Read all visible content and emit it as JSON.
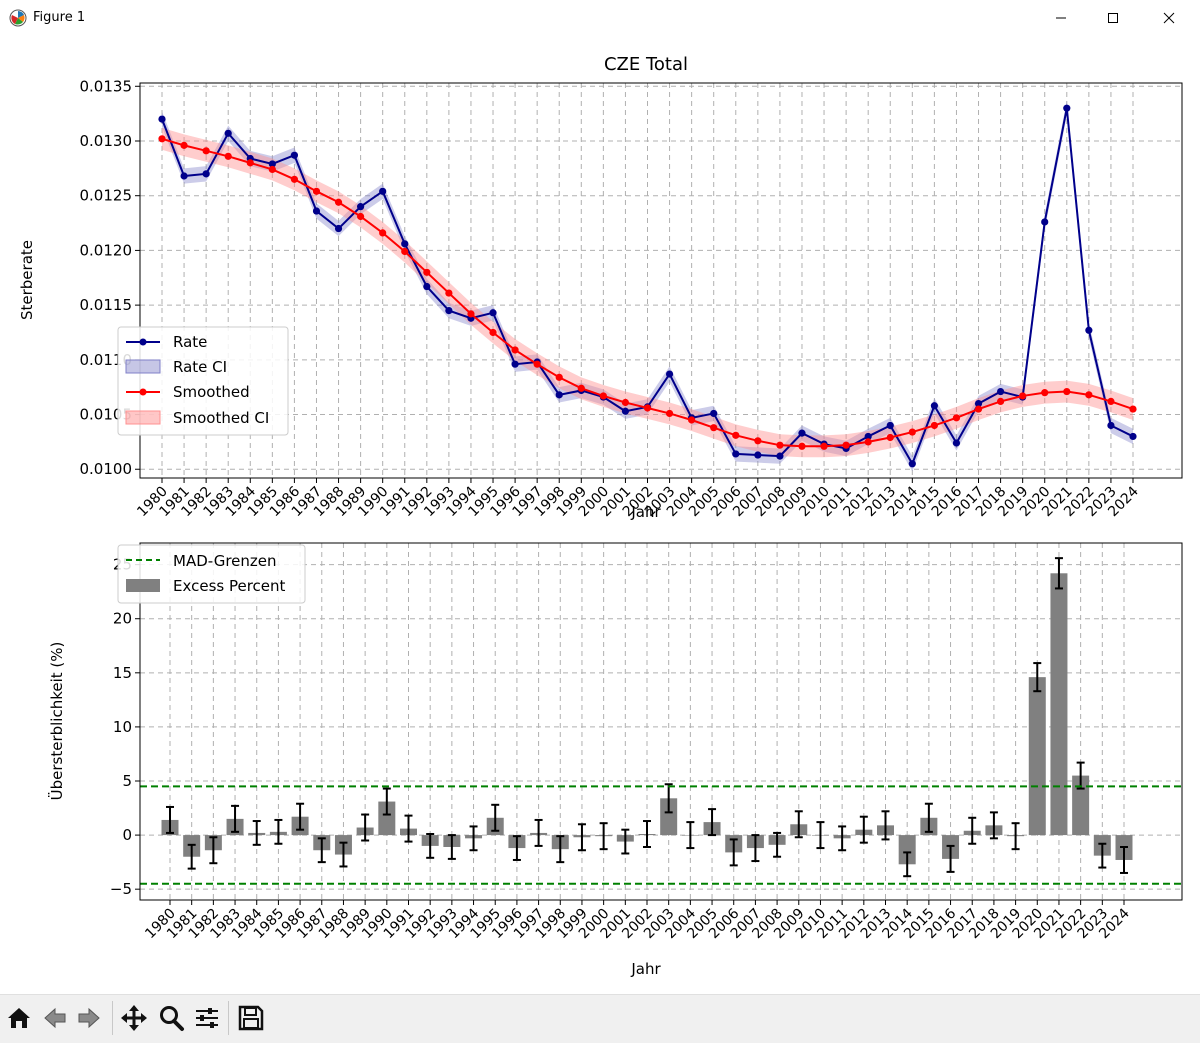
{
  "window": {
    "title": "Figure 1"
  },
  "toolbar": {
    "buttons": [
      {
        "name": "home-icon"
      },
      {
        "name": "back-icon"
      },
      {
        "name": "forward-icon"
      },
      {
        "name": "pan-icon"
      },
      {
        "name": "zoom-icon"
      },
      {
        "name": "configure-subplots-icon"
      },
      {
        "name": "save-icon"
      }
    ]
  },
  "chart_data": [
    {
      "type": "line",
      "title": "CZE Total",
      "xlabel": "Jahr",
      "ylabel": "Sterberate",
      "x": [
        1980,
        1981,
        1982,
        1983,
        1984,
        1985,
        1986,
        1987,
        1988,
        1989,
        1990,
        1991,
        1992,
        1993,
        1994,
        1995,
        1996,
        1997,
        1998,
        1999,
        2000,
        2001,
        2002,
        2003,
        2004,
        2005,
        2006,
        2007,
        2008,
        2009,
        2010,
        2011,
        2012,
        2013,
        2014,
        2015,
        2016,
        2017,
        2018,
        2019,
        2020,
        2021,
        2022,
        2023,
        2024
      ],
      "ylim": [
        0.00992,
        0.01353
      ],
      "yticks": [
        "0.0100",
        "0.0105",
        "0.0110",
        "0.0115",
        "0.0120",
        "0.0125",
        "0.0130",
        "0.0135"
      ],
      "ytick_values": [
        0.01,
        0.0105,
        0.011,
        0.0115,
        0.012,
        0.0125,
        0.013,
        0.0135
      ],
      "grid": true,
      "legend": "lower-left",
      "series": [
        {
          "name": "Rate",
          "color": "#00008b",
          "marker": "circle",
          "values": [
            0.0132,
            0.01268,
            0.0127,
            0.01307,
            0.01284,
            0.01279,
            0.01287,
            0.01236,
            0.0122,
            0.0124,
            0.01254,
            0.01206,
            0.01167,
            0.01145,
            0.01138,
            0.01143,
            0.01096,
            0.01098,
            0.01068,
            0.01072,
            0.01066,
            0.01053,
            0.01057,
            0.01087,
            0.01047,
            0.01051,
            0.01014,
            0.01013,
            0.01012,
            0.01033,
            0.01023,
            0.01019,
            0.0103,
            0.0104,
            0.01005,
            0.01058,
            0.01024,
            0.0106,
            0.01071,
            0.01066,
            0.01226,
            0.0133,
            0.01127,
            0.0104,
            0.0103
          ],
          "ci_name": "Rate CI",
          "ci_color": "#8080c8",
          "ci_halfwidth": 7e-05
        },
        {
          "name": "Smoothed",
          "color": "#ff0000",
          "marker": "circle",
          "values": [
            0.01302,
            0.01296,
            0.01291,
            0.01286,
            0.0128,
            0.01274,
            0.01265,
            0.01254,
            0.01244,
            0.01231,
            0.01216,
            0.01199,
            0.0118,
            0.01161,
            0.01142,
            0.01125,
            0.01109,
            0.01096,
            0.01084,
            0.01074,
            0.01067,
            0.01061,
            0.01056,
            0.01051,
            0.01045,
            0.01038,
            0.01031,
            0.01026,
            0.01022,
            0.01021,
            0.01021,
            0.01022,
            0.01025,
            0.01029,
            0.01034,
            0.0104,
            0.01047,
            0.01055,
            0.01062,
            0.01067,
            0.0107,
            0.01071,
            0.01068,
            0.01062,
            0.01055
          ],
          "ci_name": "Smoothed CI",
          "ci_color": "#ff9090",
          "ci_halfwidth": 0.0001
        }
      ]
    },
    {
      "type": "bar",
      "xlabel": "Jahr",
      "ylabel": "Übersterblichkeit (%)",
      "x": [
        1980,
        1981,
        1982,
        1983,
        1984,
        1985,
        1986,
        1987,
        1988,
        1989,
        1990,
        1991,
        1992,
        1993,
        1994,
        1995,
        1996,
        1997,
        1998,
        1999,
        2000,
        2001,
        2002,
        2003,
        2004,
        2005,
        2006,
        2007,
        2008,
        2009,
        2010,
        2011,
        2012,
        2013,
        2014,
        2015,
        2016,
        2017,
        2018,
        2019,
        2020,
        2021,
        2022,
        2023,
        2024
      ],
      "ylim": [
        -6.0,
        27.0
      ],
      "yticks": [
        "−5",
        "0",
        "5",
        "10",
        "15",
        "20",
        "25"
      ],
      "ytick_values": [
        -5,
        0,
        5,
        10,
        15,
        20,
        25
      ],
      "grid": true,
      "legend": "top-left",
      "series": [
        {
          "name": "Excess Percent",
          "color": "#808080",
          "values": [
            1.4,
            -2.0,
            -1.4,
            1.5,
            0.2,
            0.3,
            1.7,
            -1.4,
            -1.8,
            0.7,
            3.1,
            0.6,
            -1.0,
            -1.1,
            -0.3,
            1.6,
            -1.2,
            0.2,
            -1.3,
            -0.2,
            -0.1,
            -0.6,
            0.1,
            3.4,
            0.0,
            1.2,
            -1.6,
            -1.2,
            -0.9,
            1.0,
            0.0,
            -0.3,
            0.5,
            0.9,
            -2.7,
            1.6,
            -2.2,
            0.4,
            0.9,
            -0.1,
            14.6,
            24.2,
            5.5,
            -1.9,
            -2.3
          ],
          "error": [
            1.2,
            1.1,
            1.2,
            1.2,
            1.1,
            1.1,
            1.2,
            1.1,
            1.1,
            1.2,
            1.2,
            1.2,
            1.1,
            1.1,
            1.1,
            1.2,
            1.1,
            1.2,
            1.2,
            1.2,
            1.2,
            1.1,
            1.2,
            1.3,
            1.2,
            1.2,
            1.2,
            1.2,
            1.1,
            1.2,
            1.2,
            1.1,
            1.2,
            1.3,
            1.1,
            1.3,
            1.2,
            1.2,
            1.2,
            1.2,
            1.3,
            1.4,
            1.2,
            1.1,
            1.2
          ]
        }
      ],
      "reference_lines": [
        {
          "name": "MAD-Grenzen",
          "color": "#008000",
          "style": "dashed",
          "values": [
            4.5,
            -4.5
          ]
        }
      ]
    }
  ]
}
